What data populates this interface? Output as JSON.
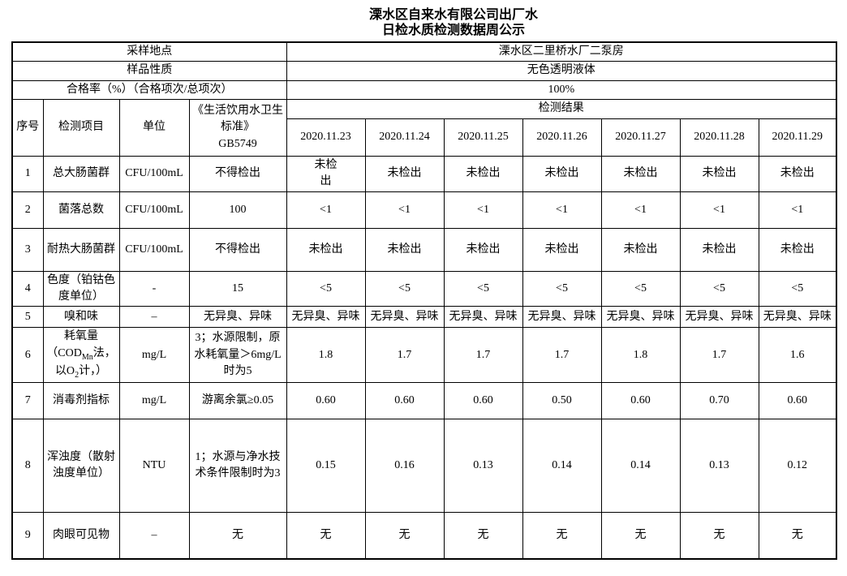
{
  "title": {
    "line1": "溧水区自来水有限公司出厂水",
    "line2": "日检水质检测数据周公示"
  },
  "info": [
    {
      "label": "采样地点",
      "value": "溧水区二里桥水厂二泵房"
    },
    {
      "label": "样品性质",
      "value": "无色透明液体"
    },
    {
      "label": "合格率（%）（合格项次/总项次）",
      "value": "100%"
    }
  ],
  "header": {
    "seq": "序号",
    "item": "检测项目",
    "unit": "单位",
    "standard": "《生活饮用水卫生标准》\nGB5749",
    "result": "检测结果",
    "dates": [
      "2020.11.23",
      "2020.11.24",
      "2020.11.25",
      "2020.11.26",
      "2020.11.27",
      "2020.11.28",
      "2020.11.29"
    ]
  },
  "rows": [
    {
      "seq": "1",
      "item": "总大肠菌群",
      "unit": "CFU/100mL",
      "standard": "不得检出",
      "values": [
        "未检\n出",
        "未检出",
        "未检出",
        "未检出",
        "未检出",
        "未检出",
        "未检出"
      ]
    },
    {
      "seq": "2",
      "item": "菌落总数",
      "unit": "CFU/100mL",
      "standard": "100",
      "values": [
        "<1",
        "<1",
        "<1",
        "<1",
        "<1",
        "<1",
        "<1"
      ]
    },
    {
      "seq": "3",
      "item": "耐热大肠菌群",
      "unit": "CFU/100mL",
      "standard": "不得检出",
      "values": [
        "未检出",
        "未检出",
        "未检出",
        "未检出",
        "未检出",
        "未检出",
        "未检出"
      ]
    },
    {
      "seq": "4",
      "item": "色度（铂钴色度单位）",
      "unit": "-",
      "standard": "15",
      "values": [
        "<5",
        "<5",
        "<5",
        "<5",
        "<5",
        "<5",
        "<5"
      ]
    },
    {
      "seq": "5",
      "item": "嗅和味",
      "unit": "–",
      "standard": "无异臭、异味",
      "values": [
        "无异臭、异味",
        "无异臭、异味",
        "无异臭、异味",
        "无异臭、异味",
        "无异臭、异味",
        "无异臭、异味",
        "无异臭、异味"
      ]
    },
    {
      "seq": "6",
      "item": "耗氧量（COD_{Mn}法，以O_{2}计，）",
      "unit": "mg/L",
      "standard": "3；水源限制，原水耗氧量＞6mg/L时为5",
      "values": [
        "1.8",
        "1.7",
        "1.7",
        "1.7",
        "1.8",
        "1.7",
        "1.6"
      ]
    },
    {
      "seq": "7",
      "item": "消毒剂指标",
      "unit": "mg/L",
      "standard": "游离余氯≥0.05",
      "values": [
        "0.60",
        "0.60",
        "0.60",
        "0.50",
        "0.60",
        "0.70",
        "0.60"
      ]
    },
    {
      "seq": "8",
      "item": "浑浊度（散射浊度单位）",
      "unit": "NTU",
      "standard": "1；水源与净水技术条件限制时为3",
      "values": [
        "0.15",
        "0.16",
        "0.13",
        "0.14",
        "0.14",
        "0.13",
        "0.12"
      ]
    },
    {
      "seq": "9",
      "item": "肉眼可见物",
      "unit": "–",
      "standard": "无",
      "values": [
        "无",
        "无",
        "无",
        "无",
        "无",
        "无",
        "无"
      ]
    }
  ]
}
